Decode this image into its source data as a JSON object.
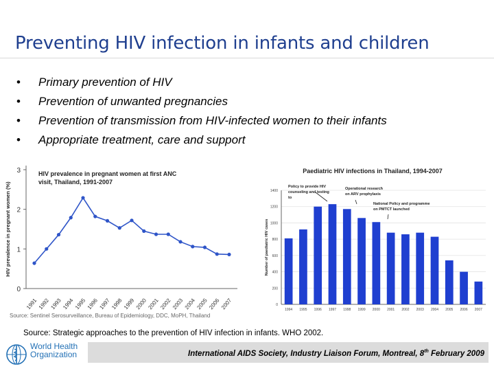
{
  "slide": {
    "title": "Preventing HIV infection in infants and children",
    "bullets": [
      "Primary prevention of HIV",
      "Prevention of unwanted pregnancies",
      "Prevention of  transmission from HIV-infected women to their infants",
      "Appropriate treatment, care and support"
    ],
    "bullet_glyph": "•",
    "source_small": "Source: Sentinel Serosurveillance, Bureau of Epidemiology, DDC, MoPH, Thailand",
    "source": "Source: Strategic approaches to the prevention of HIV infection in infants. WHO 2002.",
    "footer_main": "International AIDS Society, Industry Liaison Forum, Montreal, 8",
    "footer_sup": "th",
    "footer_tail": " February 2009",
    "org_name": "World Health Organization",
    "colors": {
      "title": "#1f3f8f",
      "line": "#2f55c8",
      "bar": "#1f3fd0"
    }
  },
  "chart_data": [
    {
      "type": "line",
      "title": "HIV prevalence in pregnant women at first ANC visit, Thailand, 1991-2007",
      "ylabel": "HIV prevalence in pregnant women (%)",
      "x": [
        "1991",
        "1992",
        "1993",
        "1994",
        "1995",
        "1996",
        "1997",
        "1998",
        "1999",
        "2000",
        "2001",
        "2002",
        "2003",
        "2004",
        "2005",
        "2006",
        "2007"
      ],
      "values": [
        0.64,
        1.0,
        1.36,
        1.79,
        2.29,
        1.82,
        1.71,
        1.53,
        1.72,
        1.45,
        1.37,
        1.37,
        1.18,
        1.06,
        1.04,
        0.87,
        0.86
      ],
      "yticks": [
        0,
        1,
        2,
        3
      ],
      "ylim": [
        0,
        3
      ]
    },
    {
      "type": "bar",
      "title": "Paediatric HIV infections in Thailand, 1994-2007",
      "ylabel": "Number of paediatric HIV cases",
      "categories": [
        "1994",
        "1995",
        "1996",
        "1997",
        "1998",
        "1999",
        "2000",
        "2001",
        "2002",
        "2003",
        "2004",
        "2005",
        "2006",
        "2007"
      ],
      "values": [
        810,
        920,
        1200,
        1230,
        1170,
        1060,
        1010,
        880,
        860,
        880,
        830,
        540,
        400,
        280
      ],
      "yticks": [
        0,
        200,
        400,
        600,
        800,
        1000,
        1200,
        1400
      ],
      "ylim": [
        0,
        1400
      ],
      "annotations": [
        "Policy to provide HIV counseling and testing to",
        "Operational research on ARV prophylaxis",
        "National Policy and programme on PMTCT launched"
      ]
    }
  ]
}
